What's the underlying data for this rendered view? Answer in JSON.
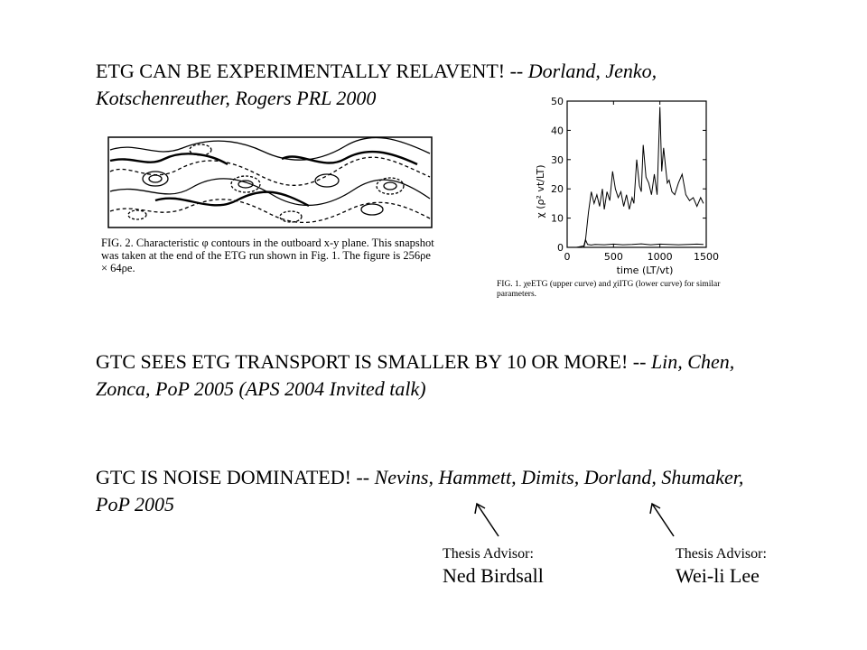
{
  "headings": [
    {
      "plain": "ETG CAN BE EXPERIMENTALLY RELAVENT! -- ",
      "italic": "Dorland, Jenko, Kotschenreuther, Rogers PRL 2000"
    },
    {
      "plain": "GTC SEES ETG TRANSPORT IS SMALLER BY 10 OR MORE! -- ",
      "italic": "Lin, Chen, Zonca, PoP 2005 (APS 2004 Invited talk)"
    },
    {
      "plain": "GTC IS NOISE DOMINATED! -- ",
      "italic": "Nevins, Hammett, Dimits, Dorland, Shumaker, PoP 2005"
    }
  ],
  "figure2": {
    "label": "FIG. 2.",
    "caption": "Characteristic φ contours in the outboard x-y plane. This snapshot was taken at the end of the ETG run shown in Fig. 1. The figure is 256ρe × 64ρe."
  },
  "figure1": {
    "label": "FIG. 1.",
    "caption": "χeETG (upper curve) and χiITG (lower curve) for similar parameters."
  },
  "chart_data": {
    "type": "line",
    "xlabel": "time (LT/vt)",
    "ylabel": "χ (ρ² vt/LT)",
    "xlim": [
      0,
      1500
    ],
    "ylim": [
      0,
      50
    ],
    "xticks": [
      0,
      500,
      1000,
      1500
    ],
    "yticks": [
      0,
      10,
      20,
      30,
      40,
      50
    ],
    "series": [
      {
        "x": [
          0,
          100,
          180,
          200,
          230,
          260,
          290,
          320,
          350,
          380,
          400,
          430,
          460,
          490,
          520,
          550,
          580,
          610,
          640,
          670,
          700,
          720,
          750,
          780,
          800,
          820,
          850,
          880,
          910,
          940,
          970,
          1000,
          1020,
          1040,
          1060,
          1080,
          1100,
          1130,
          1160,
          1200,
          1240,
          1280,
          1320,
          1360,
          1400,
          1440,
          1470
        ],
        "y": [
          0,
          0,
          0.5,
          3,
          12,
          19,
          15,
          18,
          14,
          20,
          13,
          19,
          16,
          26,
          20,
          17,
          19,
          14,
          18,
          13,
          17,
          15,
          30,
          21,
          19,
          35,
          24,
          22,
          18,
          25,
          18,
          48,
          26,
          34,
          28,
          22,
          23,
          19,
          18,
          22,
          25,
          18,
          16,
          17,
          14,
          17,
          15
        ]
      },
      {
        "x": [
          0,
          180,
          200,
          220,
          260,
          300,
          400,
          500,
          600,
          700,
          800,
          900,
          1000,
          1100,
          1200,
          1300,
          1400,
          1470
        ],
        "y": [
          0,
          0,
          2.5,
          1,
          0.8,
          1,
          0.9,
          1.1,
          0.9,
          1,
          1.2,
          0.9,
          1.1,
          1,
          0.9,
          1,
          1.1,
          1
        ]
      }
    ]
  },
  "advisors": [
    {
      "role": "Thesis Advisor:",
      "name": "Ned Birdsall"
    },
    {
      "role": "Thesis Advisor:",
      "name": "Wei-li Lee"
    }
  ]
}
